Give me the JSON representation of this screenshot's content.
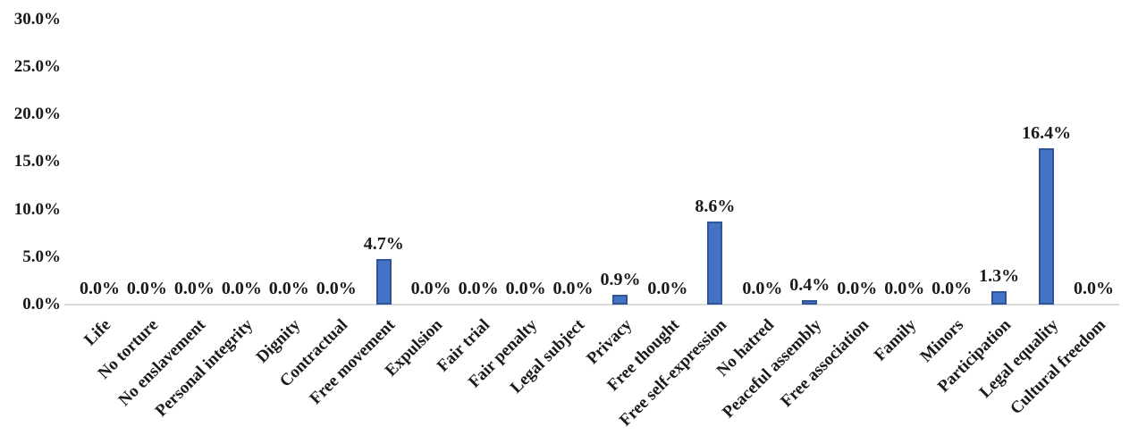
{
  "chart_data": {
    "type": "bar",
    "title": "",
    "xlabel": "",
    "ylabel": "",
    "categories": [
      "Life",
      "No torture",
      "No enslavement",
      "Personal integrity",
      "Dignity",
      "Contractual",
      "Free movement",
      "Expulsion",
      "Fair trial",
      "Fair penalty",
      "Legal subject",
      "Privacy",
      "Free thought",
      "Free self-expression",
      "No hatred",
      "Peaceful assembly",
      "Free association",
      "Family",
      "Minors",
      "Participation",
      "Legal equality",
      "Cultural freedom"
    ],
    "values": [
      0.0,
      0.0,
      0.0,
      0.0,
      0.0,
      0.0,
      4.7,
      0.0,
      0.0,
      0.0,
      0.0,
      0.9,
      0.0,
      8.6,
      0.0,
      0.4,
      0.0,
      0.0,
      0.0,
      1.3,
      16.4,
      0.0
    ],
    "data_labels": [
      "0.0%",
      "0.0%",
      "0.0%",
      "0.0%",
      "0.0%",
      "0.0%",
      "4.7%",
      "0.0%",
      "0.0%",
      "0.0%",
      "0.0%",
      "0.9%",
      "0.0%",
      "8.6%",
      "0.0%",
      "0.4%",
      "0.0%",
      "0.0%",
      "0.0%",
      "1.3%",
      "16.4%",
      "0.0%"
    ],
    "y_axis": {
      "tick_labels": [
        "0.0%",
        "5.0%",
        "10.0%",
        "15.0%",
        "20.0%",
        "25.0%",
        "30.0%"
      ],
      "tick_values": [
        0,
        5,
        10,
        15,
        20,
        25,
        30
      ]
    },
    "ylim": [
      0,
      30
    ],
    "grid": false,
    "legend": "none",
    "colors": {
      "bar_fill": "#4472C4",
      "bar_border": "#2F5597",
      "axis_line": "#D9D9D9",
      "text": "#1a1a1a"
    }
  }
}
